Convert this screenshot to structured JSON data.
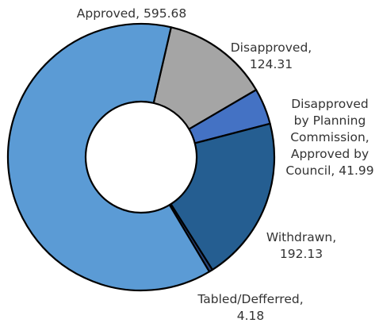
{
  "chart_data": {
    "type": "pie",
    "variant": "donut",
    "title": "",
    "start_angle_deg": 13,
    "direction": "clockwise",
    "slices": [
      {
        "name": "Disapproved",
        "value": 124.31,
        "color": "#a5a5a5",
        "label_lines": [
          "Disapproved,",
          "124.31"
        ]
      },
      {
        "name": "Disapproved by Planning Commission, Approved by Council",
        "value": 41.99,
        "color": "#4472c4",
        "label_lines": [
          "Disapproved",
          "by Planning",
          "Commission,",
          "Approved by",
          "Council, 41.99"
        ]
      },
      {
        "name": "Withdrawn",
        "value": 192.13,
        "color": "#255e91",
        "label_lines": [
          "Withdrawn,",
          "192.13"
        ]
      },
      {
        "name": "Tabled/Defferred",
        "value": 4.18,
        "color": "#264478",
        "label_lines": [
          "Tabled/Defferred,",
          "4.18"
        ]
      },
      {
        "name": "Approved",
        "value": 595.68,
        "color": "#5b9bd5",
        "label_lines": [
          "Approved, 595.68"
        ]
      }
    ]
  }
}
